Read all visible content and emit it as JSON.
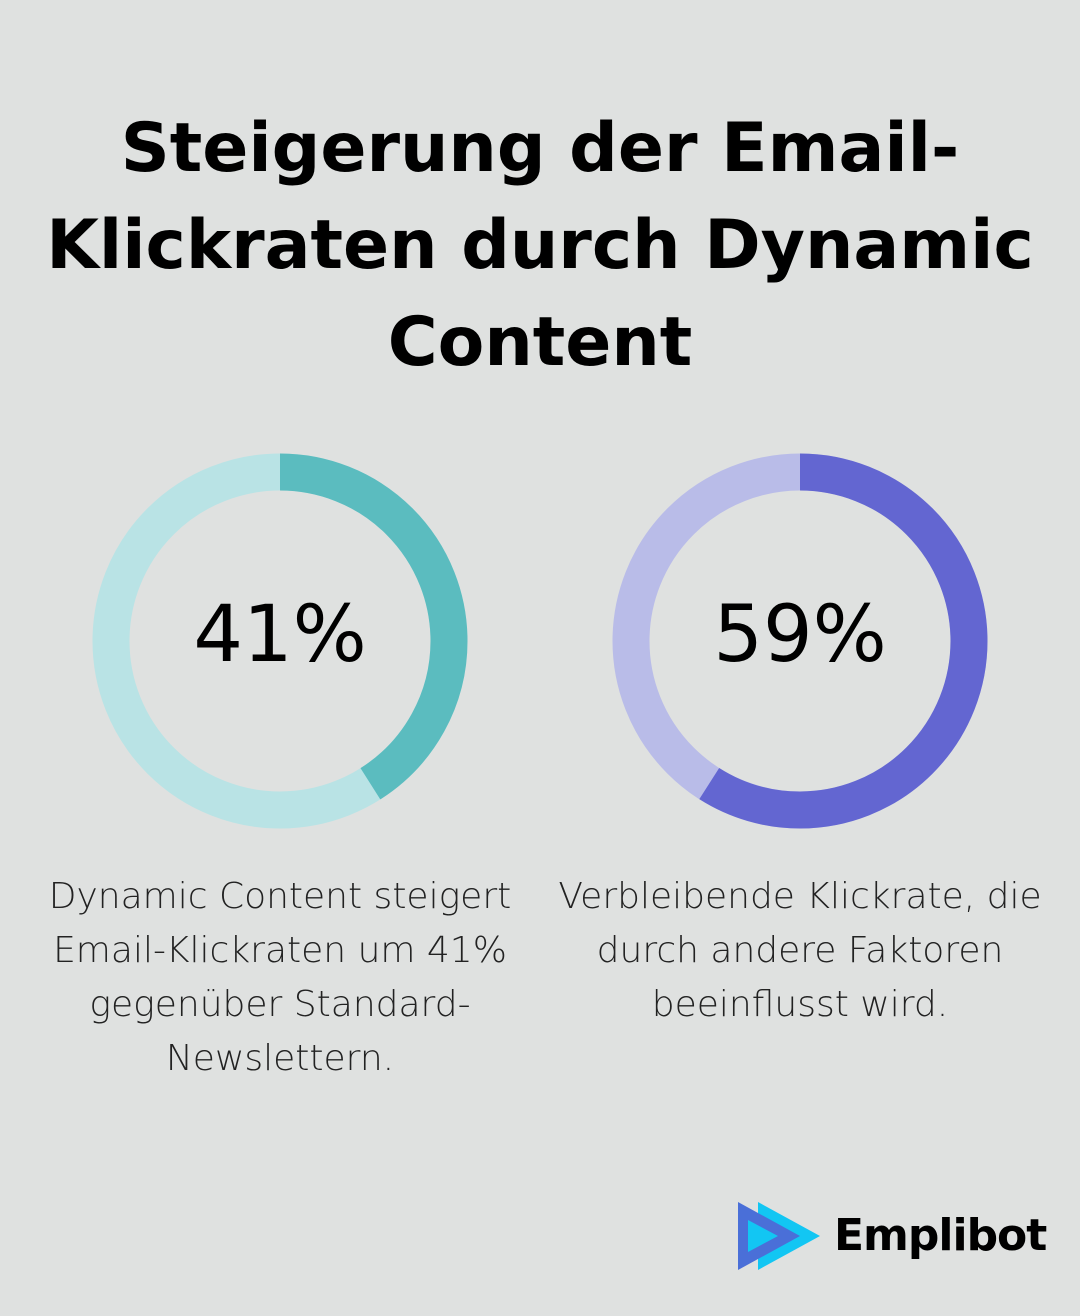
{
  "chart_data": [
    {
      "type": "pie",
      "variant": "donut",
      "value": 41,
      "remainder": 59,
      "label": "41%",
      "caption": "Dynamic Content steigert Email-Klickraten um 41% gegenüber Standard-Newslettern.",
      "colors": {
        "fill": "#5bbcbf",
        "track": "#b9e3e5"
      }
    },
    {
      "type": "pie",
      "variant": "donut",
      "value": 59,
      "remainder": 41,
      "label": "59%",
      "caption": "Verbleibende Klickrate, die durch andere Faktoren beeinflusst wird.",
      "colors": {
        "fill": "#6366d1",
        "track": "#b9bce8"
      }
    }
  ],
  "title": "Steigerung der Email-Klickraten durch Dynamic Content",
  "logo": {
    "text": "Emplibot"
  },
  "colors": {
    "background": "#dfe1e0"
  }
}
